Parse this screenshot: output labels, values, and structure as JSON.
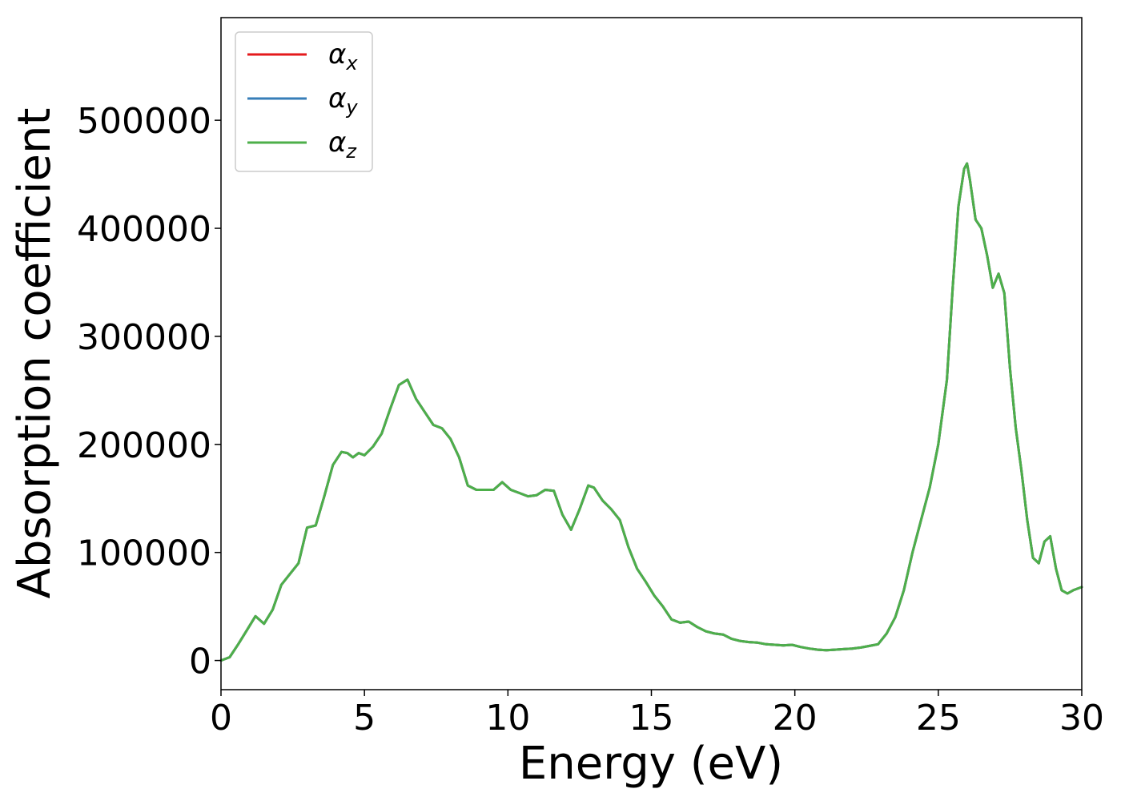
{
  "chart_data": {
    "type": "line",
    "xlabel": "Energy (eV)",
    "ylabel": "Absorption coefficient",
    "xlim": [
      0,
      30
    ],
    "ylim": [
      -27000,
      595000
    ],
    "xticks": [
      "0",
      "5",
      "10",
      "15",
      "20",
      "25",
      "30"
    ],
    "yticks": [
      "0",
      "100000",
      "200000",
      "300000",
      "400000",
      "500000"
    ],
    "grid": false,
    "legend_position": "top-left",
    "colors": {
      "x": "#e41a1c",
      "y": "#377eb8",
      "z": "#4daf4a"
    },
    "series": [
      {
        "name": "α",
        "subscript": "x",
        "color": "#e41a1c"
      },
      {
        "name": "α",
        "subscript": "y",
        "color": "#377eb8"
      },
      {
        "name": "α",
        "subscript": "z",
        "color": "#4daf4a"
      }
    ],
    "x": [
      0,
      0.3,
      0.6,
      0.9,
      1.2,
      1.5,
      1.8,
      2.1,
      2.4,
      2.7,
      3.0,
      3.3,
      3.6,
      3.9,
      4.2,
      4.4,
      4.6,
      4.8,
      5.0,
      5.3,
      5.6,
      5.9,
      6.2,
      6.5,
      6.8,
      7.1,
      7.4,
      7.7,
      8.0,
      8.3,
      8.6,
      8.9,
      9.2,
      9.5,
      9.8,
      10.1,
      10.4,
      10.7,
      11.0,
      11.3,
      11.6,
      11.9,
      12.2,
      12.5,
      12.8,
      13.0,
      13.3,
      13.6,
      13.9,
      14.2,
      14.5,
      14.8,
      15.1,
      15.4,
      15.7,
      16.0,
      16.3,
      16.6,
      16.9,
      17.2,
      17.5,
      17.8,
      18.1,
      18.4,
      18.7,
      19.0,
      19.3,
      19.6,
      19.9,
      20.2,
      20.5,
      20.8,
      21.1,
      21.4,
      21.7,
      22.0,
      22.3,
      22.6,
      22.9,
      23.2,
      23.5,
      23.8,
      24.1,
      24.4,
      24.7,
      25.0,
      25.3,
      25.5,
      25.7,
      25.9,
      26.0,
      26.1,
      26.3,
      26.5,
      26.7,
      26.9,
      27.1,
      27.3,
      27.5,
      27.7,
      27.9,
      28.1,
      28.3,
      28.5,
      28.7,
      28.9,
      29.1,
      29.3,
      29.5,
      29.7,
      30.0
    ],
    "values": [
      0,
      3000,
      15000,
      28000,
      41000,
      34000,
      47000,
      70000,
      80000,
      90000,
      123000,
      125000,
      152000,
      181000,
      193000,
      192000,
      188000,
      192000,
      190000,
      198000,
      210000,
      233000,
      255000,
      260000,
      242000,
      230000,
      218000,
      215000,
      205000,
      188000,
      162000,
      158000,
      158000,
      158000,
      165000,
      158000,
      155000,
      152000,
      153000,
      158000,
      157000,
      135000,
      121000,
      140000,
      162000,
      160000,
      148000,
      140000,
      130000,
      105000,
      85000,
      73000,
      60000,
      50000,
      38000,
      35000,
      36000,
      31000,
      27000,
      25000,
      24000,
      20000,
      18000,
      17000,
      16500,
      15000,
      14500,
      14000,
      14500,
      12500,
      11000,
      10000,
      9500,
      10000,
      10500,
      11000,
      12000,
      13500,
      15000,
      25000,
      40000,
      65000,
      100000,
      130000,
      160000,
      200000,
      260000,
      345000,
      420000,
      455000,
      460000,
      445000,
      408000,
      400000,
      375000,
      345000,
      358000,
      340000,
      270000,
      215000,
      175000,
      130000,
      95000,
      90000,
      110000,
      115000,
      85000,
      65000,
      62000,
      65000,
      68000
    ]
  }
}
